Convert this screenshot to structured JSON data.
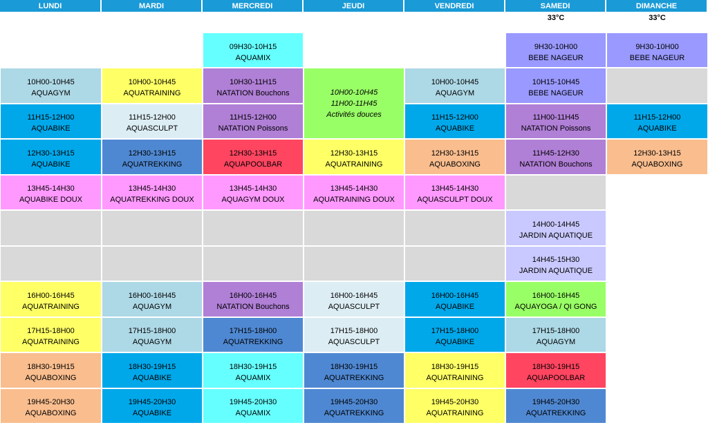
{
  "days": [
    "LUNDI",
    "MARDI",
    "MERCREDI",
    "JEUDI",
    "VENDREDI",
    "SAMEDI",
    "DIMANCHE"
  ],
  "temperatures": {
    "SAMEDI": "33°C",
    "DIMANCHE": "33°C"
  },
  "colors": {
    "lightblue": "#add8e6",
    "yellow": "#ffff66",
    "purple": "#b07fd6",
    "green": "#99ff66",
    "blue": "#00a8ea",
    "paleblue": "#dcedf4",
    "steelblue": "#4f88d2",
    "red": "#ff4560",
    "orange": "#f9bd8e",
    "pink": "#ff99ff",
    "gray": "#d9d9d9",
    "lavender": "#c9c9ff",
    "periwinkle": "#9999ff",
    "cyan": "#66ffff"
  },
  "activities": [
    {
      "day": "MERCREDI",
      "row": 0,
      "span": 1,
      "time": "09H30-10H15",
      "name": "AQUAMIX",
      "color": "cyan"
    },
    {
      "day": "SAMEDI",
      "row": 0,
      "span": 1,
      "time": "9H30-10H00",
      "name": "BEBE NAGEUR",
      "color": "periwinkle"
    },
    {
      "day": "DIMANCHE",
      "row": 0,
      "span": 1,
      "time": "9H30-10H00",
      "name": "BEBE NAGEUR",
      "color": "periwinkle"
    },
    {
      "day": "LUNDI",
      "row": 1,
      "span": 1,
      "time": "10H00-10H45",
      "name": "AQUAGYM",
      "color": "lightblue"
    },
    {
      "day": "MARDI",
      "row": 1,
      "span": 1,
      "time": "10H00-10H45",
      "name": "AQUATRAINING",
      "color": "yellow"
    },
    {
      "day": "MERCREDI",
      "row": 1,
      "span": 1,
      "time": "10H30-11H15",
      "name": "NATATION Bouchons",
      "color": "purple"
    },
    {
      "day": "JEUDI",
      "row": 1,
      "span": 2,
      "time": "10H00-10H45",
      "time2": "11H00-11H45",
      "name": "Activités douces",
      "color": "green",
      "italic": true
    },
    {
      "day": "VENDREDI",
      "row": 1,
      "span": 1,
      "time": "10H00-10H45",
      "name": "AQUAGYM",
      "color": "lightblue"
    },
    {
      "day": "SAMEDI",
      "row": 1,
      "span": 1,
      "time": "10H15-10H45",
      "name": "BEBE NAGEUR",
      "color": "periwinkle"
    },
    {
      "day": "DIMANCHE",
      "row": 1,
      "span": 1,
      "time": "",
      "name": "",
      "color": "gray"
    },
    {
      "day": "LUNDI",
      "row": 2,
      "span": 1,
      "time": "11H15-12H00",
      "name": "AQUABIKE",
      "color": "blue"
    },
    {
      "day": "MARDI",
      "row": 2,
      "span": 1,
      "time": "11H15-12H00",
      "name": "AQUASCULPT",
      "color": "paleblue"
    },
    {
      "day": "MERCREDI",
      "row": 2,
      "span": 1,
      "time": "11H15-12H00",
      "name": "NATATION Poissons",
      "color": "purple"
    },
    {
      "day": "VENDREDI",
      "row": 2,
      "span": 1,
      "time": "11H15-12H00",
      "name": "AQUABIKE",
      "color": "blue"
    },
    {
      "day": "SAMEDI",
      "row": 2,
      "span": 1,
      "time": "11H00-11H45",
      "name": "NATATION Poissons",
      "color": "purple"
    },
    {
      "day": "DIMANCHE",
      "row": 2,
      "span": 1,
      "time": "11H15-12H00",
      "name": "AQUABIKE",
      "color": "blue"
    },
    {
      "day": "LUNDI",
      "row": 3,
      "span": 1,
      "time": "12H30-13H15",
      "name": "AQUABIKE",
      "color": "blue"
    },
    {
      "day": "MARDI",
      "row": 3,
      "span": 1,
      "time": "12H30-13H15",
      "name": "AQUATREKKING",
      "color": "steelblue"
    },
    {
      "day": "MERCREDI",
      "row": 3,
      "span": 1,
      "time": "12H30-13H15",
      "name": "AQUAPOOLBAR",
      "color": "red"
    },
    {
      "day": "JEUDI",
      "row": 3,
      "span": 1,
      "time": "12H30-13H15",
      "name": "AQUATRAINING",
      "color": "yellow"
    },
    {
      "day": "VENDREDI",
      "row": 3,
      "span": 1,
      "time": "12H30-13H15",
      "name": "AQUABOXING",
      "color": "orange"
    },
    {
      "day": "SAMEDI",
      "row": 3,
      "span": 1,
      "time": "11H45-12H30",
      "name": "NATATION Bouchons",
      "color": "purple"
    },
    {
      "day": "DIMANCHE",
      "row": 3,
      "span": 1,
      "time": "12H30-13H15",
      "name": "AQUABOXING",
      "color": "orange"
    },
    {
      "day": "LUNDI",
      "row": 4,
      "span": 1,
      "time": "13H45-14H30",
      "name": "AQUABIKE DOUX",
      "color": "pink"
    },
    {
      "day": "MARDI",
      "row": 4,
      "span": 1,
      "time": "13H45-14H30",
      "name": "AQUATREKKING DOUX",
      "color": "pink"
    },
    {
      "day": "MERCREDI",
      "row": 4,
      "span": 1,
      "time": "13H45-14H30",
      "name": "AQUAGYM DOUX",
      "color": "pink"
    },
    {
      "day": "JEUDI",
      "row": 4,
      "span": 1,
      "time": "13H45-14H30",
      "name": "AQUATRAINING DOUX",
      "color": "pink"
    },
    {
      "day": "VENDREDI",
      "row": 4,
      "span": 1,
      "time": "13H45-14H30",
      "name": "AQUASCULPT DOUX",
      "color": "pink"
    },
    {
      "day": "SAMEDI",
      "row": 4,
      "span": 1,
      "time": "",
      "name": "",
      "color": "gray"
    },
    {
      "day": "LUNDI",
      "row": 5,
      "span": 1,
      "time": "",
      "name": "",
      "color": "gray"
    },
    {
      "day": "MARDI",
      "row": 5,
      "span": 1,
      "time": "",
      "name": "",
      "color": "gray"
    },
    {
      "day": "MERCREDI",
      "row": 5,
      "span": 1,
      "time": "",
      "name": "",
      "color": "gray"
    },
    {
      "day": "JEUDI",
      "row": 5,
      "span": 1,
      "time": "",
      "name": "",
      "color": "gray"
    },
    {
      "day": "VENDREDI",
      "row": 5,
      "span": 1,
      "time": "",
      "name": "",
      "color": "gray"
    },
    {
      "day": "SAMEDI",
      "row": 5,
      "span": 1,
      "time": "14H00-14H45",
      "name": "JARDIN AQUATIQUE",
      "color": "lavender"
    },
    {
      "day": "LUNDI",
      "row": 6,
      "span": 1,
      "time": "",
      "name": "",
      "color": "gray"
    },
    {
      "day": "MARDI",
      "row": 6,
      "span": 1,
      "time": "",
      "name": "",
      "color": "gray"
    },
    {
      "day": "MERCREDI",
      "row": 6,
      "span": 1,
      "time": "",
      "name": "",
      "color": "gray"
    },
    {
      "day": "JEUDI",
      "row": 6,
      "span": 1,
      "time": "",
      "name": "",
      "color": "gray"
    },
    {
      "day": "VENDREDI",
      "row": 6,
      "span": 1,
      "time": "",
      "name": "",
      "color": "gray"
    },
    {
      "day": "SAMEDI",
      "row": 6,
      "span": 1,
      "time": "14H45-15H30",
      "name": "JARDIN AQUATIQUE",
      "color": "lavender"
    },
    {
      "day": "LUNDI",
      "row": 7,
      "span": 1,
      "time": "16H00-16H45",
      "name": "AQUATRAINING",
      "color": "yellow"
    },
    {
      "day": "MARDI",
      "row": 7,
      "span": 1,
      "time": "16H00-16H45",
      "name": "AQUAGYM",
      "color": "lightblue"
    },
    {
      "day": "MERCREDI",
      "row": 7,
      "span": 1,
      "time": "16H00-16H45",
      "name": "NATATION Bouchons",
      "color": "purple"
    },
    {
      "day": "JEUDI",
      "row": 7,
      "span": 1,
      "time": "16H00-16H45",
      "name": "AQUASCULPT",
      "color": "paleblue"
    },
    {
      "day": "VENDREDI",
      "row": 7,
      "span": 1,
      "time": "16H00-16H45",
      "name": "AQUABIKE",
      "color": "blue"
    },
    {
      "day": "SAMEDI",
      "row": 7,
      "span": 1,
      "time": "16H00-16H45",
      "name": "AQUAYOGA / QI GONG",
      "color": "green"
    },
    {
      "day": "LUNDI",
      "row": 8,
      "span": 1,
      "time": "17H15-18H00",
      "name": "AQUATRAINING",
      "color": "yellow"
    },
    {
      "day": "MARDI",
      "row": 8,
      "span": 1,
      "time": "17H15-18H00",
      "name": "AQUAGYM",
      "color": "lightblue"
    },
    {
      "day": "MERCREDI",
      "row": 8,
      "span": 1,
      "time": "17H15-18H00",
      "name": "AQUATREKKING",
      "color": "steelblue"
    },
    {
      "day": "JEUDI",
      "row": 8,
      "span": 1,
      "time": "17H15-18H00",
      "name": "AQUASCULPT",
      "color": "paleblue"
    },
    {
      "day": "VENDREDI",
      "row": 8,
      "span": 1,
      "time": "17H15-18H00",
      "name": "AQUABIKE",
      "color": "blue"
    },
    {
      "day": "SAMEDI",
      "row": 8,
      "span": 1,
      "time": "17H15-18H00",
      "name": "AQUAGYM",
      "color": "lightblue"
    },
    {
      "day": "LUNDI",
      "row": 9,
      "span": 1,
      "time": "18H30-19H15",
      "name": "AQUABOXING",
      "color": "orange"
    },
    {
      "day": "MARDI",
      "row": 9,
      "span": 1,
      "time": "18H30-19H15",
      "name": "AQUABIKE",
      "color": "blue"
    },
    {
      "day": "MERCREDI",
      "row": 9,
      "span": 1,
      "time": "18H30-19H15",
      "name": "AQUAMIX",
      "color": "cyan"
    },
    {
      "day": "JEUDI",
      "row": 9,
      "span": 1,
      "time": "18H30-19H15",
      "name": "AQUATREKKING",
      "color": "steelblue"
    },
    {
      "day": "VENDREDI",
      "row": 9,
      "span": 1,
      "time": "18H30-19H15",
      "name": "AQUATRAINING",
      "color": "yellow"
    },
    {
      "day": "SAMEDI",
      "row": 9,
      "span": 1,
      "time": "18H30-19H15",
      "name": "AQUAPOOLBAR",
      "color": "red"
    },
    {
      "day": "LUNDI",
      "row": 10,
      "span": 1,
      "time": "19H45-20H30",
      "name": "AQUABOXING",
      "color": "orange"
    },
    {
      "day": "MARDI",
      "row": 10,
      "span": 1,
      "time": "19H45-20H30",
      "name": "AQUABIKE",
      "color": "blue"
    },
    {
      "day": "MERCREDI",
      "row": 10,
      "span": 1,
      "time": "19H45-20H30",
      "name": "AQUAMIX",
      "color": "cyan"
    },
    {
      "day": "JEUDI",
      "row": 10,
      "span": 1,
      "time": "19H45-20H30",
      "name": "AQUATREKKING",
      "color": "steelblue"
    },
    {
      "day": "VENDREDI",
      "row": 10,
      "span": 1,
      "time": "19H45-20H30",
      "name": "AQUATRAINING",
      "color": "yellow"
    },
    {
      "day": "SAMEDI",
      "row": 10,
      "span": 1,
      "time": "19H45-20H30",
      "name": "AQUATREKKING",
      "color": "steelblue"
    }
  ]
}
